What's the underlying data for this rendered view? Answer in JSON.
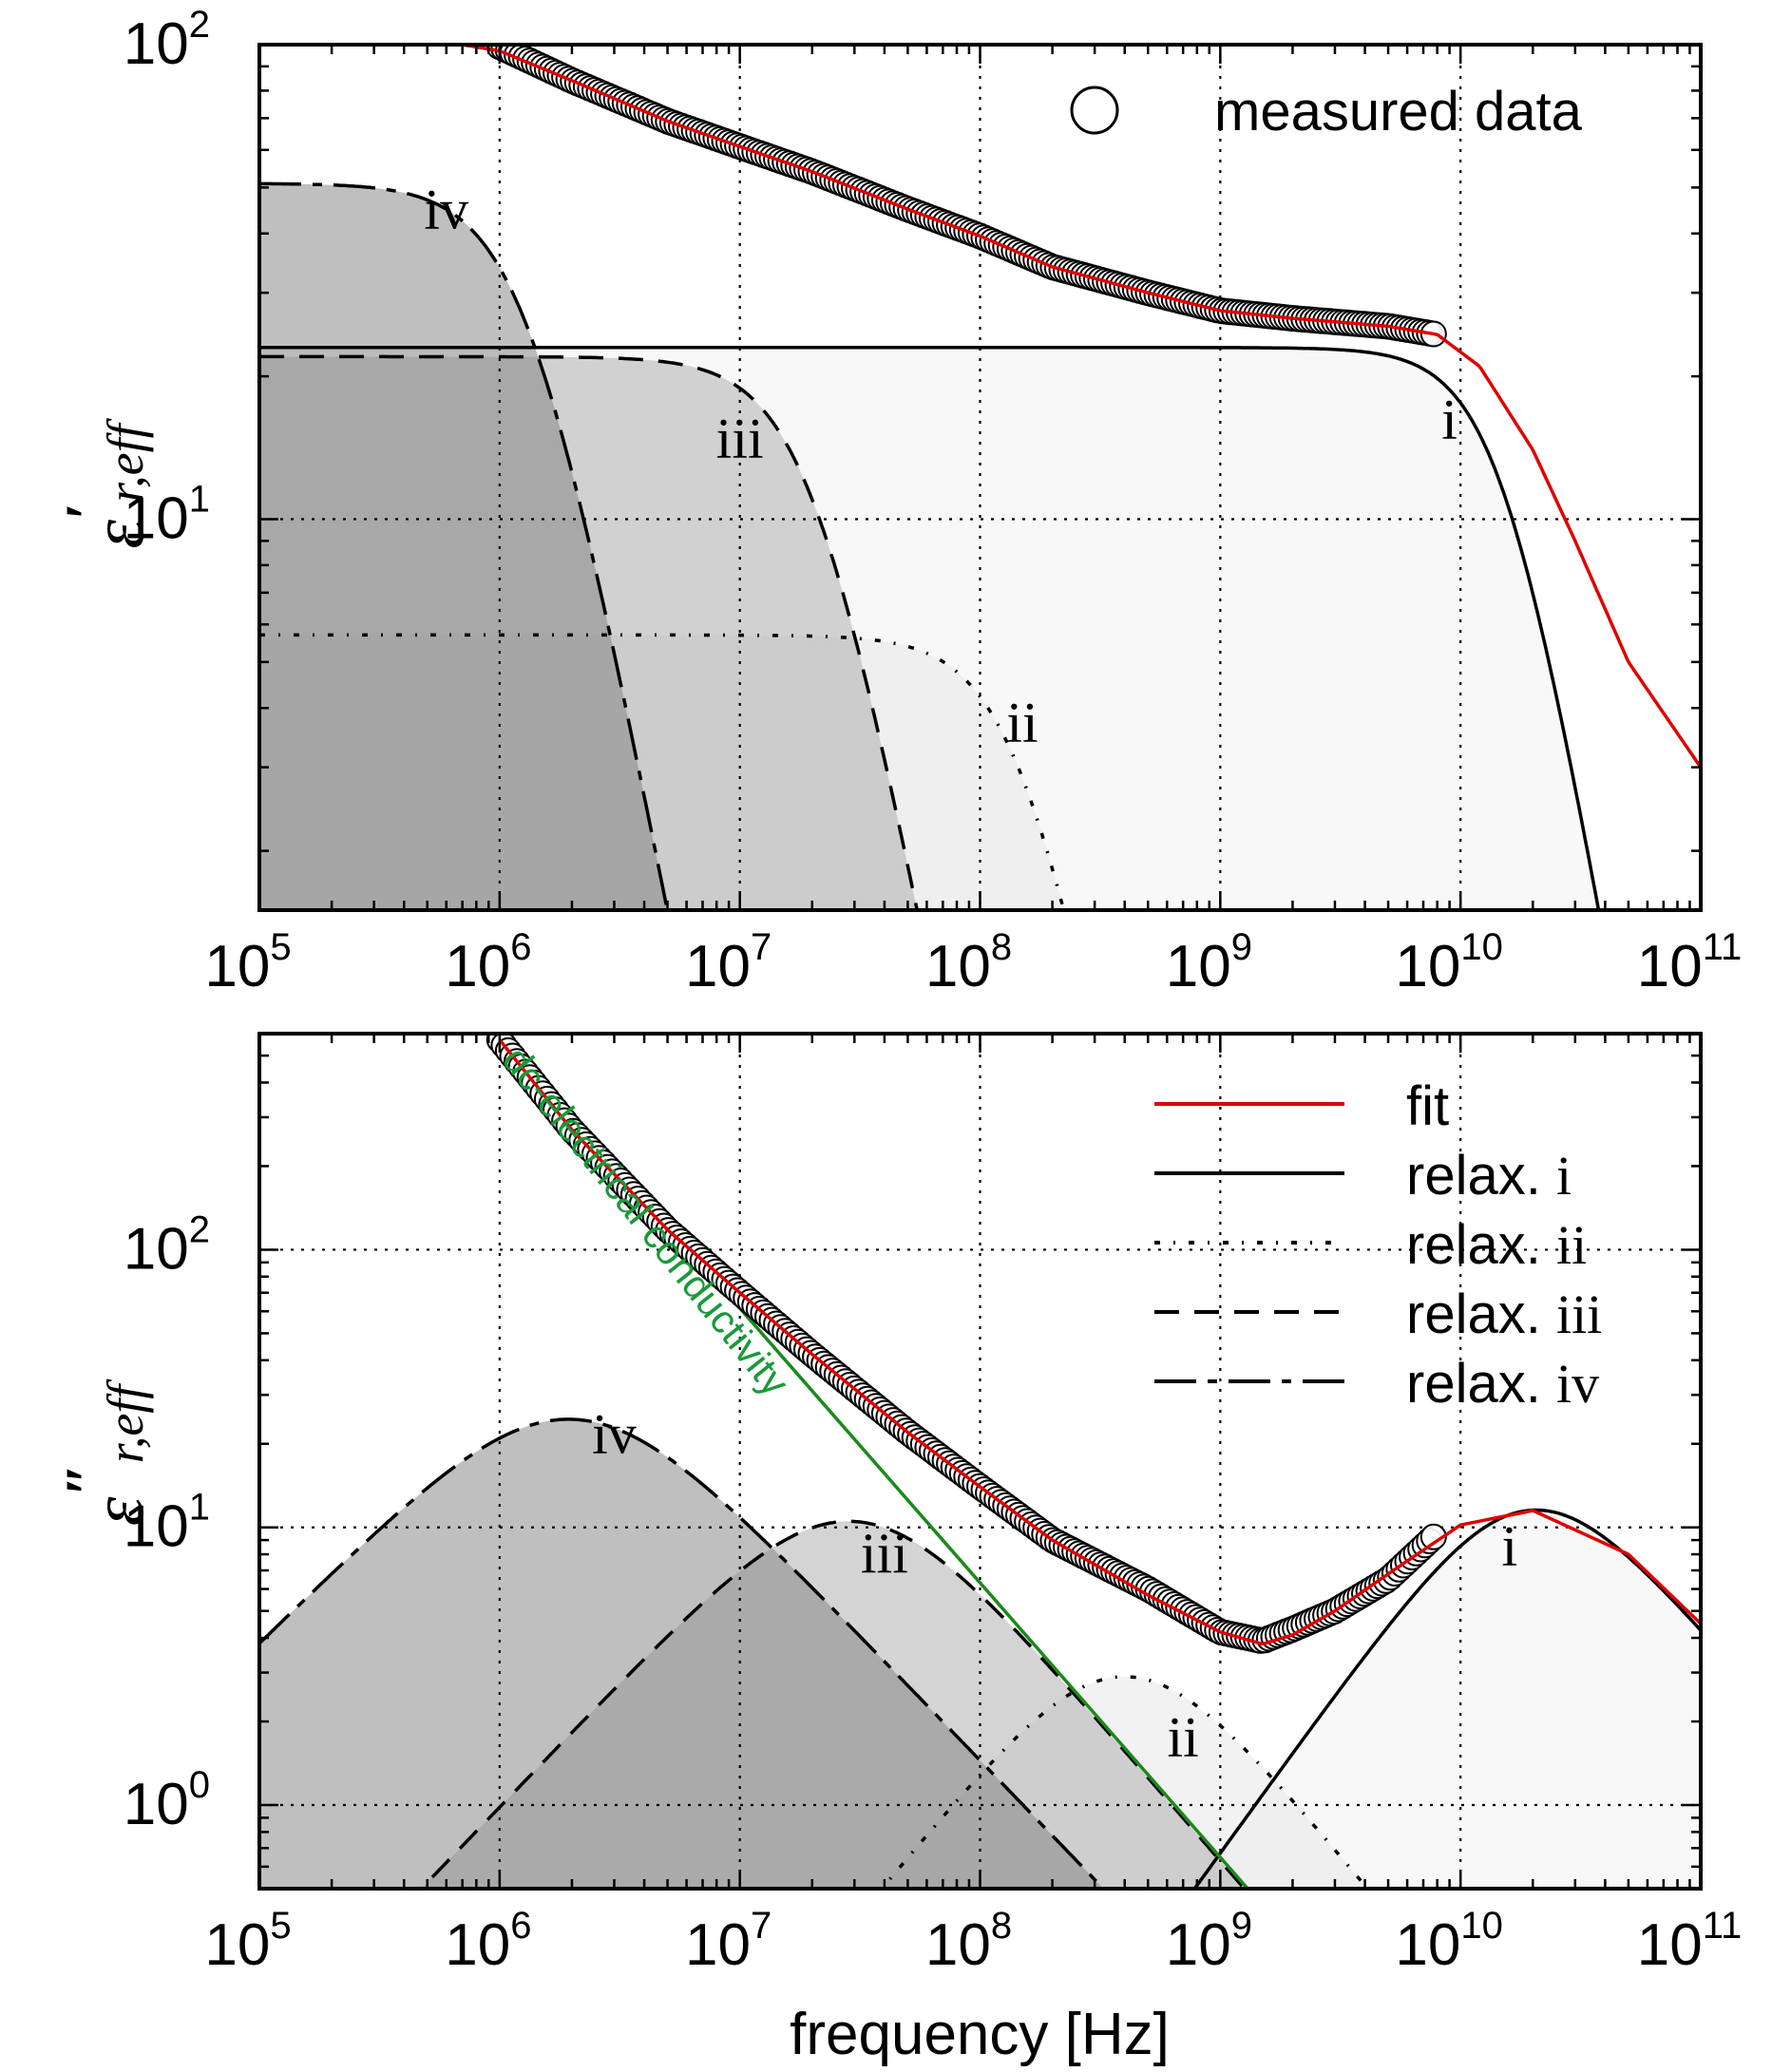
{
  "chart_data": [
    {
      "type": "line",
      "panel": "top",
      "title": "",
      "xlabel": "",
      "ylabel": "ε'r,eff",
      "ylabel_symbol": "ε",
      "ylabel_prime": "′",
      "ylabel_sub": "r,eff",
      "xscale": "log",
      "yscale": "log",
      "xlim": [
        100000,
        100000000000
      ],
      "ylim": [
        1.5,
        100
      ],
      "grid": true,
      "x_ticks": [
        {
          "base": "10",
          "exp": "5"
        },
        {
          "base": "10",
          "exp": "6"
        },
        {
          "base": "10",
          "exp": "7"
        },
        {
          "base": "10",
          "exp": "8"
        },
        {
          "base": "10",
          "exp": "9"
        },
        {
          "base": "10",
          "exp": "10"
        },
        {
          "base": "10",
          "exp": "11"
        }
      ],
      "y_ticks": [
        {
          "base": "10",
          "exp": "1"
        },
        {
          "base": "10",
          "exp": "2"
        }
      ],
      "legend": {
        "placement": "top-right",
        "entries": [
          {
            "label": "measured data",
            "marker": "open-circle"
          }
        ]
      },
      "series": [
        {
          "name": "measured data",
          "style": "markers",
          "x": [
            1000000,
            2000000,
            5000000,
            10000000,
            20000000,
            50000000,
            100000000,
            200000000,
            500000000,
            1000000000,
            2000000000,
            5000000000,
            8000000000
          ],
          "y": [
            99,
            84,
            69,
            61,
            54,
            45,
            39.5,
            34,
            30,
            27.5,
            26.5,
            25.5,
            24.5
          ]
        },
        {
          "name": "fit",
          "style": "red-line",
          "x": [
            700000,
            1000000,
            2000000,
            5000000,
            10000000,
            20000000,
            50000000,
            100000000,
            200000000,
            500000000,
            1000000000,
            2000000000,
            5000000000,
            8000000000,
            12000000000,
            20000000000,
            30000000000,
            50000000000,
            100000000000
          ],
          "y": [
            100,
            97,
            84,
            69,
            61,
            54,
            45,
            39.5,
            34,
            30,
            27.5,
            26.5,
            25.5,
            24.5,
            21,
            14,
            9,
            5,
            3
          ]
        },
        {
          "name": "relax. i",
          "style": "solid",
          "eps_s": 23,
          "f_c": 15000000000,
          "n": 2.9,
          "fill": "#f3f3f3"
        },
        {
          "name": "relax. ii",
          "style": "dashdot",
          "eps_s": 5.7,
          "f_c": 150000000,
          "n": 2.6,
          "fill": "#e8e8e8"
        },
        {
          "name": "relax. iii",
          "style": "dashed",
          "eps_s": 22,
          "f_c": 20000000,
          "n": 2.6,
          "fill": "#a9a9a9"
        },
        {
          "name": "relax. iv",
          "style": "longdash",
          "eps_s": 51,
          "f_c": 1300000,
          "n": 2.6,
          "fill": "#7f7f7f"
        }
      ],
      "annotations": [
        {
          "text": "iv",
          "x": 600000,
          "y": 41
        },
        {
          "text": "iii",
          "x": 10000000,
          "y": 13.5
        },
        {
          "text": "ii",
          "x": 150000000,
          "y": 3.4
        },
        {
          "text": "i",
          "x": 9000000000,
          "y": 14.8
        }
      ]
    },
    {
      "type": "line",
      "panel": "bottom",
      "title": "",
      "xlabel": "frequency [Hz]",
      "ylabel": "ε''r,eff",
      "ylabel_symbol": "ε",
      "ylabel_prime": "″",
      "ylabel_sub": "r,eff",
      "xscale": "log",
      "yscale": "log",
      "xlim": [
        100000,
        100000000000
      ],
      "ylim": [
        0.5,
        600
      ],
      "grid": true,
      "x_ticks": [
        {
          "base": "10",
          "exp": "5"
        },
        {
          "base": "10",
          "exp": "6"
        },
        {
          "base": "10",
          "exp": "7"
        },
        {
          "base": "10",
          "exp": "8"
        },
        {
          "base": "10",
          "exp": "9"
        },
        {
          "base": "10",
          "exp": "10"
        },
        {
          "base": "10",
          "exp": "11"
        }
      ],
      "y_ticks": [
        {
          "base": "10",
          "exp": "0"
        },
        {
          "base": "10",
          "exp": "1"
        },
        {
          "base": "10",
          "exp": "2"
        }
      ],
      "legend": {
        "placement": "top-right",
        "entries": [
          {
            "text": "fit",
            "roman": "",
            "line": "red"
          },
          {
            "text": "relax. ",
            "roman": "i",
            "line": "solid"
          },
          {
            "text": "relax. ",
            "roman": "ii",
            "line": "dashdot"
          },
          {
            "text": "relax. ",
            "roman": "iii",
            "line": "dashed"
          },
          {
            "text": "relax. ",
            "roman": "iv",
            "line": "longdash"
          }
        ]
      },
      "series": [
        {
          "name": "measured data",
          "style": "markers",
          "x": [
            1000000,
            2000000,
            5000000,
            10000000,
            20000000,
            50000000,
            100000000,
            200000000,
            500000000,
            1000000000,
            1500000000,
            2000000000,
            3000000000,
            5000000000,
            8000000000
          ],
          "y": [
            570,
            270,
            118,
            70,
            42,
            22,
            14,
            9,
            6,
            4.2,
            3.9,
            4.3,
            5,
            6.5,
            9.5
          ]
        },
        {
          "name": "fit",
          "style": "red-line",
          "x": [
            1000000,
            2000000,
            5000000,
            10000000,
            20000000,
            50000000,
            100000000,
            200000000,
            500000000,
            1000000000,
            1500000000,
            2000000000,
            3000000000,
            5000000000,
            10000000000,
            20000000000,
            50000000000,
            100000000000
          ],
          "y": [
            570,
            270,
            118,
            70,
            42,
            22,
            14,
            9,
            5.7,
            4.2,
            3.8,
            4.1,
            5,
            6.8,
            10.2,
            11.5,
            8,
            4.5
          ]
        },
        {
          "name": "relax. i",
          "style": "solid",
          "peak_x": 19000000000,
          "peak_y": 11.5,
          "slope_up": 1.2,
          "slope_down": 1.0,
          "fill": "#f3f3f3"
        },
        {
          "name": "relax. ii",
          "style": "dashdot",
          "peak_x": 400000000,
          "peak_y": 2.9,
          "slope_up": 1.05,
          "slope_down": 1.05,
          "fill": "#e8e8e8"
        },
        {
          "name": "relax. iii",
          "style": "dashed",
          "peak_x": 30000000,
          "peak_y": 10.5,
          "slope_up": 0.9,
          "slope_down": 1.0,
          "fill": "#a9a9a9"
        },
        {
          "name": "relax. iv",
          "style": "longdash",
          "peak_x": 2000000,
          "peak_y": 24.5,
          "slope_up": 0.85,
          "slope_down": 0.9,
          "fill": "#7f7f7f"
        },
        {
          "name": "dc-electrical conductivity",
          "style": "green-line",
          "x": [
            1000000,
            1300000000
          ],
          "y": [
            600,
            0.5
          ]
        }
      ],
      "annotations": [
        {
          "text": "iv",
          "x": 3000000,
          "y": 18.5
        },
        {
          "text": "iii",
          "x": 40000000,
          "y": 6.9
        },
        {
          "text": "ii",
          "x": 700000000,
          "y": 1.5
        },
        {
          "text": "i",
          "x": 16000000000,
          "y": 7.3
        },
        {
          "text": "dc-electrical conductivity",
          "green": true
        }
      ]
    }
  ]
}
